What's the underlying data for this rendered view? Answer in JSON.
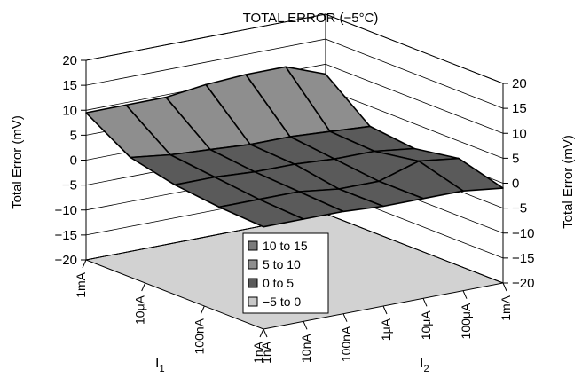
{
  "chart_data": {
    "type": "surface",
    "title": "TOTAL ERROR (−5°C)",
    "zlabel": "Total Error (mV)",
    "zlim": [
      -20,
      20
    ],
    "z_ticks": [
      "20",
      "15",
      "10",
      "5",
      "0",
      "−5",
      "−10",
      "−15",
      "−20"
    ],
    "z_tick_values": [
      20,
      15,
      10,
      5,
      0,
      -5,
      -10,
      -15,
      -20
    ],
    "x_axis": {
      "label": "I",
      "subscript": "1",
      "ticks": [
        "1mA",
        "10μA",
        "100nA",
        "1nA"
      ]
    },
    "y_axis": {
      "label": "I",
      "subscript": "2",
      "ticks": [
        "1nA",
        "10nA",
        "100nA",
        "1μA",
        "10μA",
        "100μA",
        "1mA"
      ]
    },
    "legend": {
      "position": "bottom-center",
      "entries": [
        {
          "label": "10 to 15",
          "color": "#7a7a7a"
        },
        {
          "label": "5 to 10",
          "color": "#8e8e8e"
        },
        {
          "label": "0 to 5",
          "color": "#5a5a5a"
        },
        {
          "label": "−5 to 0",
          "color": "#c8c8c8"
        }
      ]
    },
    "surface_z": [
      [
        9.5,
        9.5,
        9.5,
        10.5,
        11,
        11,
        8
      ],
      [
        4,
        3,
        2.5,
        2,
        2,
        1.5,
        1
      ],
      [
        2,
        2,
        1.5,
        1.5,
        1,
        1,
        0
      ],
      [
        1,
        1,
        1,
        0,
        0,
        2.5,
        1.5
      ],
      [
        0.5,
        0.5,
        0.5,
        0,
        0,
        0,
        -1
      ]
    ],
    "colors": {
      "floor": "#d2d2d2",
      "grid": "#000000"
    }
  }
}
